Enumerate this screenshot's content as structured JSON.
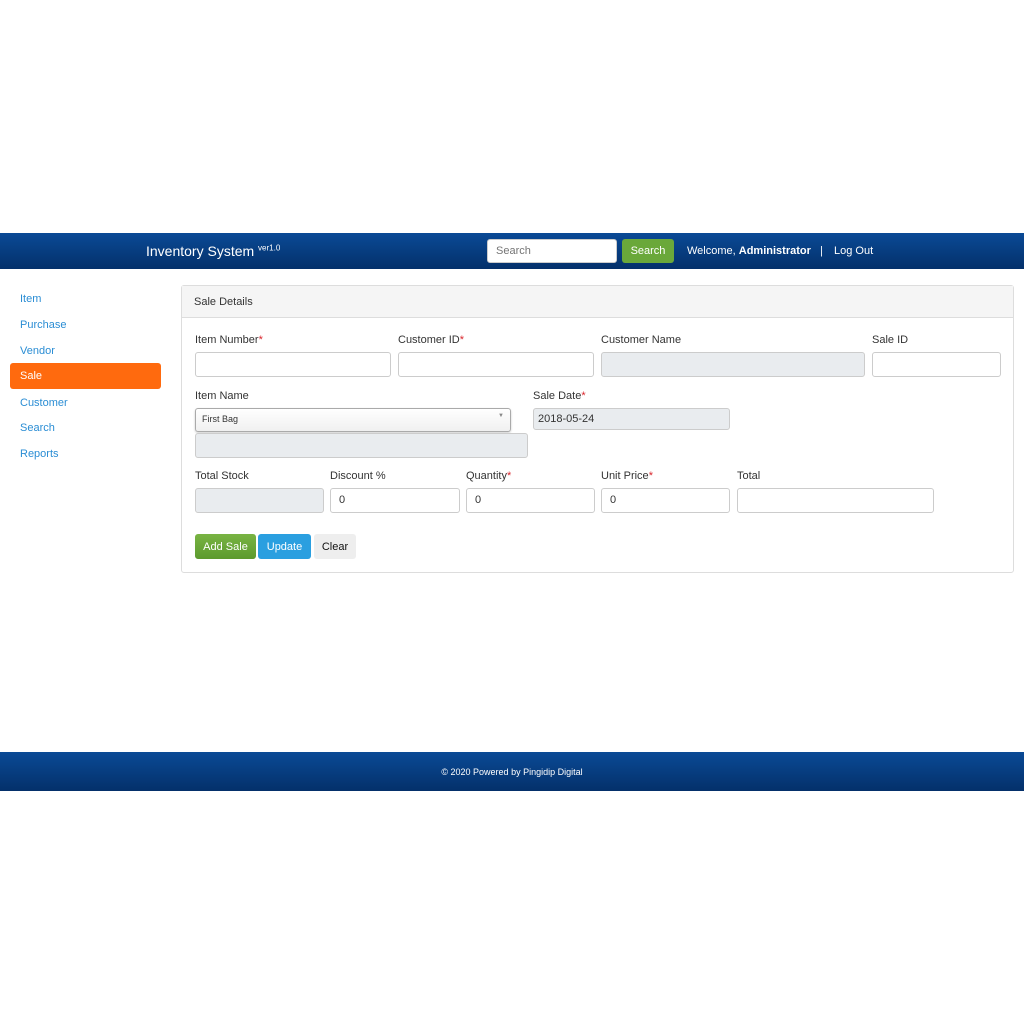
{
  "navbar": {
    "brand": "Inventory System",
    "version": "ver1.0",
    "search_placeholder": "Search",
    "search_button": "Search",
    "welcome": "Welcome, ",
    "user": "Administrator",
    "separator": "|",
    "logout": "Log Out"
  },
  "sidebar": {
    "items": [
      {
        "label": "Item"
      },
      {
        "label": "Purchase"
      },
      {
        "label": "Vendor"
      },
      {
        "label": "Sale",
        "active": true
      },
      {
        "label": "Customer"
      },
      {
        "label": "Search"
      },
      {
        "label": "Reports"
      }
    ]
  },
  "panel": {
    "title": "Sale Details",
    "fields": {
      "item_number": "Item Number",
      "customer_id": "Customer ID",
      "customer_name": "Customer Name",
      "sale_id": "Sale ID",
      "item_name": "Item Name",
      "item_name_value": "First Bag",
      "sale_date": "Sale Date",
      "sale_date_value": "2018-05-24",
      "total_stock": "Total Stock",
      "discount": "Discount %",
      "discount_value": "0",
      "quantity": "Quantity",
      "quantity_value": "0",
      "unit_price": "Unit Price",
      "unit_price_value": "0",
      "total": "Total"
    },
    "required_mark": "*",
    "buttons": {
      "add": "Add Sale",
      "update": "Update",
      "clear": "Clear"
    }
  },
  "colors": {
    "navbar": "#04306a",
    "active": "#ff6a0e",
    "green": "#6aa83a",
    "blue": "#2a9fe0"
  },
  "footer": {
    "text": "© 2020 Powered by Pingidip Digital"
  }
}
